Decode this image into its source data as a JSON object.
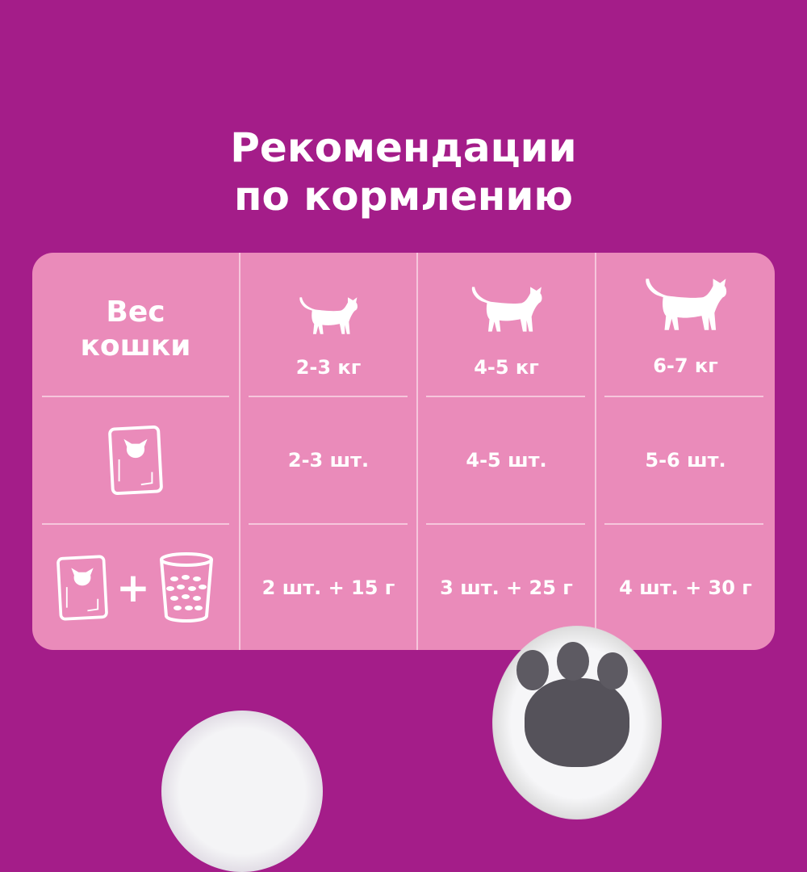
{
  "title": {
    "line1": "Рекомендации",
    "line2": "по кормлению"
  },
  "colors": {
    "background": "#a41d89",
    "panel": "#ea8bba",
    "text": "#ffffff"
  },
  "table": {
    "header_label": {
      "line1": "Вес",
      "line2": "кошки"
    },
    "columns": [
      {
        "icon": "small-cat-icon",
        "weight": "2-3 кг",
        "pouches": "2-3 шт.",
        "mixed": "2 шт. + 15 г"
      },
      {
        "icon": "medium-cat-icon",
        "weight": "4-5 кг",
        "pouches": "4-5 шт.",
        "mixed": "3 шт. + 25 г"
      },
      {
        "icon": "large-cat-icon",
        "weight": "6-7 кг",
        "pouches": "5-6 шт.",
        "mixed": "4 шт. + 30 г"
      }
    ],
    "row_icons": [
      "pouch-icon",
      "pouch-plus-dry-food-icon"
    ]
  }
}
